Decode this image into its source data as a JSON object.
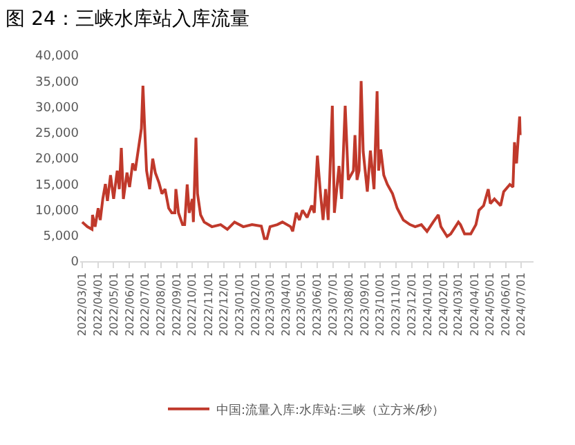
{
  "chart_data": {
    "type": "line",
    "title": "图 24：三峡水库站入库流量",
    "x": [
      "2022-03-01",
      "2022-03-11",
      "2022-03-20",
      "2022-03-21",
      "2022-03-26",
      "2022-04-01",
      "2022-04-05",
      "2022-04-10",
      "2022-04-15",
      "2022-04-19",
      "2022-04-25",
      "2022-05-01",
      "2022-05-08",
      "2022-05-12",
      "2022-05-16",
      "2022-05-20",
      "2022-05-27",
      "2022-06-01",
      "2022-06-07",
      "2022-06-12",
      "2022-06-18",
      "2022-06-24",
      "2022-06-27",
      "2022-06-30",
      "2022-07-04",
      "2022-07-10",
      "2022-07-16",
      "2022-07-21",
      "2022-07-28",
      "2022-08-03",
      "2022-08-09",
      "2022-08-16",
      "2022-08-22",
      "2022-08-28",
      "2022-08-30",
      "2022-09-04",
      "2022-09-12",
      "2022-09-16",
      "2022-09-21",
      "2022-09-25",
      "2022-10-01",
      "2022-10-03",
      "2022-10-08",
      "2022-10-11",
      "2022-10-17",
      "2022-10-24",
      "2022-11-08",
      "2022-11-25",
      "2022-12-08",
      "2022-12-22",
      "2023-01-08",
      "2023-01-25",
      "2023-02-12",
      "2023-02-18",
      "2023-02-23",
      "2023-03-01",
      "2023-03-15",
      "2023-03-25",
      "2023-04-10",
      "2023-04-14",
      "2023-04-21",
      "2023-04-27",
      "2023-05-03",
      "2023-05-12",
      "2023-05-21",
      "2023-05-26",
      "2023-06-01",
      "2023-06-07",
      "2023-06-12",
      "2023-06-17",
      "2023-06-22",
      "2023-06-30",
      "2023-07-04",
      "2023-07-13",
      "2023-07-18",
      "2023-07-25",
      "2023-07-31",
      "2023-08-10",
      "2023-08-13",
      "2023-08-17",
      "2023-08-21",
      "2023-08-25",
      "2023-08-29",
      "2023-09-06",
      "2023-09-12",
      "2023-09-19",
      "2023-09-25",
      "2023-09-28",
      "2023-10-02",
      "2023-10-08",
      "2023-10-15",
      "2023-10-25",
      "2023-11-03",
      "2023-11-15",
      "2023-11-28",
      "2023-12-08",
      "2023-12-20",
      "2023-12-31",
      "2024-01-12",
      "2024-01-22",
      "2024-01-27",
      "2024-02-08",
      "2024-02-15",
      "2024-03-01",
      "2024-03-05",
      "2024-03-13",
      "2024-03-25",
      "2024-04-04",
      "2024-04-10",
      "2024-04-19",
      "2024-04-28",
      "2024-05-02",
      "2024-05-10",
      "2024-05-22",
      "2024-05-28",
      "2024-06-09",
      "2024-06-15",
      "2024-06-18",
      "2024-06-22",
      "2024-06-28",
      "2024-06-29"
    ],
    "series": [
      {
        "name": "中国:流量入库:水库站:三峡（立方米/秒）",
        "color": "#c0392b",
        "values": [
          7600,
          6700,
          6200,
          9000,
          6700,
          10300,
          8000,
          12100,
          15000,
          11700,
          16700,
          12100,
          17600,
          14000,
          22000,
          12100,
          17200,
          14400,
          19000,
          17600,
          21700,
          25800,
          34100,
          26700,
          17600,
          14000,
          19900,
          17200,
          15300,
          13100,
          14000,
          10300,
          9400,
          9400,
          14000,
          9400,
          7100,
          7100,
          14900,
          9400,
          12100,
          7600,
          24000,
          13100,
          9000,
          7600,
          6700,
          7100,
          6200,
          7600,
          6700,
          7100,
          6800,
          4400,
          4400,
          6700,
          7100,
          7600,
          6700,
          5800,
          9400,
          8000,
          9900,
          8500,
          10800,
          9400,
          20500,
          13100,
          8000,
          14000,
          8000,
          30200,
          9400,
          18500,
          12100,
          30200,
          15800,
          17600,
          24500,
          15800,
          17600,
          35000,
          21300,
          13500,
          21500,
          14000,
          33000,
          17600,
          21700,
          16700,
          14900,
          13100,
          10300,
          8000,
          7100,
          6700,
          7100,
          5800,
          7600,
          9000,
          6700,
          4800,
          5300,
          7600,
          7100,
          5300,
          5300,
          7100,
          9900,
          10800,
          14000,
          11200,
          12100,
          10800,
          13500,
          14900,
          14400,
          23100,
          19000,
          28100,
          24500
        ]
      }
    ],
    "ylim": [
      0,
      40000
    ],
    "yticks": [
      {
        "value": 0,
        "label": "0"
      },
      {
        "value": 5000,
        "label": "5,000"
      },
      {
        "value": 10000,
        "label": "10,000"
      },
      {
        "value": 15000,
        "label": "15,000"
      },
      {
        "value": 20000,
        "label": "20,000"
      },
      {
        "value": 25000,
        "label": "25,000"
      },
      {
        "value": 30000,
        "label": "30,000"
      },
      {
        "value": 35000,
        "label": "35,000"
      },
      {
        "value": 40000,
        "label": "40,000"
      }
    ],
    "xlim": [
      "2022-02-25",
      "2024-07-25"
    ],
    "xticks": [
      {
        "value": "2022-03-01",
        "label": "2022/03/01"
      },
      {
        "value": "2022-04-01",
        "label": "2022/04/01"
      },
      {
        "value": "2022-05-01",
        "label": "2022/05/01"
      },
      {
        "value": "2022-06-01",
        "label": "2022/06/01"
      },
      {
        "value": "2022-07-01",
        "label": "2022/07/01"
      },
      {
        "value": "2022-08-01",
        "label": "2022/08/01"
      },
      {
        "value": "2022-09-01",
        "label": "2022/09/01"
      },
      {
        "value": "2022-10-01",
        "label": "2022/10/01"
      },
      {
        "value": "2022-11-01",
        "label": "2022/11/01"
      },
      {
        "value": "2022-12-01",
        "label": "2022/12/01"
      },
      {
        "value": "2023-01-01",
        "label": "2023/01/01"
      },
      {
        "value": "2023-02-01",
        "label": "2023/02/01"
      },
      {
        "value": "2023-03-01",
        "label": "2023/03/01"
      },
      {
        "value": "2023-04-01",
        "label": "2023/04/01"
      },
      {
        "value": "2023-05-01",
        "label": "2023/05/01"
      },
      {
        "value": "2023-06-01",
        "label": "2023/06/01"
      },
      {
        "value": "2023-07-01",
        "label": "2023/07/01"
      },
      {
        "value": "2023-08-01",
        "label": "2023/08/01"
      },
      {
        "value": "2023-09-01",
        "label": "2023/09/01"
      },
      {
        "value": "2023-10-01",
        "label": "2023/10/01"
      },
      {
        "value": "2023-11-01",
        "label": "2023/11/01"
      },
      {
        "value": "2023-12-01",
        "label": "2023/12/01"
      },
      {
        "value": "2024-01-01",
        "label": "2024/01/01"
      },
      {
        "value": "2024-02-01",
        "label": "2024/02/01"
      },
      {
        "value": "2024-03-01",
        "label": "2024/03/01"
      },
      {
        "value": "2024-04-01",
        "label": "2024/04/01"
      },
      {
        "value": "2024-05-01",
        "label": "2024/05/01"
      },
      {
        "value": "2024-06-01",
        "label": "2024/06/01"
      },
      {
        "value": "2024-07-01",
        "label": "2024/07/01"
      }
    ],
    "grid": false,
    "legend": "bottom",
    "marker": "none",
    "line_style": "solid"
  }
}
